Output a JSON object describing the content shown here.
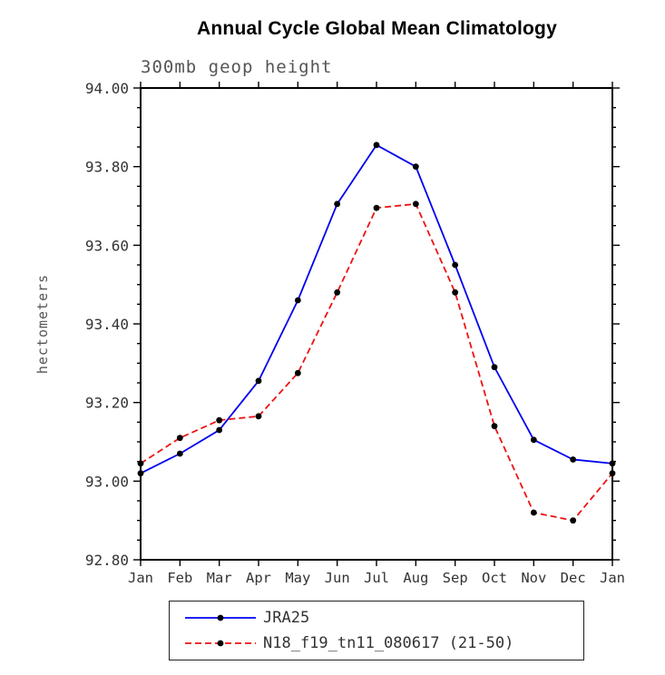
{
  "chart_data": {
    "type": "line",
    "title": "Annual Cycle Global Mean Climatology",
    "subtitle": "300mb geop height",
    "xlabel": "",
    "ylabel": "hectometers",
    "categories": [
      "Jan",
      "Feb",
      "Mar",
      "Apr",
      "May",
      "Jun",
      "Jul",
      "Aug",
      "Sep",
      "Oct",
      "Nov",
      "Dec",
      "Jan"
    ],
    "ylim": [
      92.8,
      94.0
    ],
    "ytick_step": 0.2,
    "ytick_minor_step": 0.05,
    "ytick_labels": [
      "92.80",
      "93.00",
      "93.20",
      "93.40",
      "93.60",
      "93.80",
      "94.00"
    ],
    "grid": false,
    "legend_position": "bottom",
    "marker_color": "#000000",
    "series": [
      {
        "name": "JRA25",
        "color": "#0000ee",
        "dash": "solid",
        "marker": "dot",
        "values": [
          93.02,
          93.07,
          93.13,
          93.255,
          93.46,
          93.705,
          93.855,
          93.8,
          93.55,
          93.29,
          93.105,
          93.055,
          93.045
        ]
      },
      {
        "name": "N18_f19_tn11_080617 (21-50)",
        "color": "#ee1111",
        "dash": "dashed",
        "marker": "dot",
        "values": [
          93.045,
          93.11,
          93.155,
          93.165,
          93.275,
          93.48,
          93.695,
          93.705,
          93.48,
          93.14,
          92.92,
          92.9,
          93.02
        ]
      }
    ]
  }
}
